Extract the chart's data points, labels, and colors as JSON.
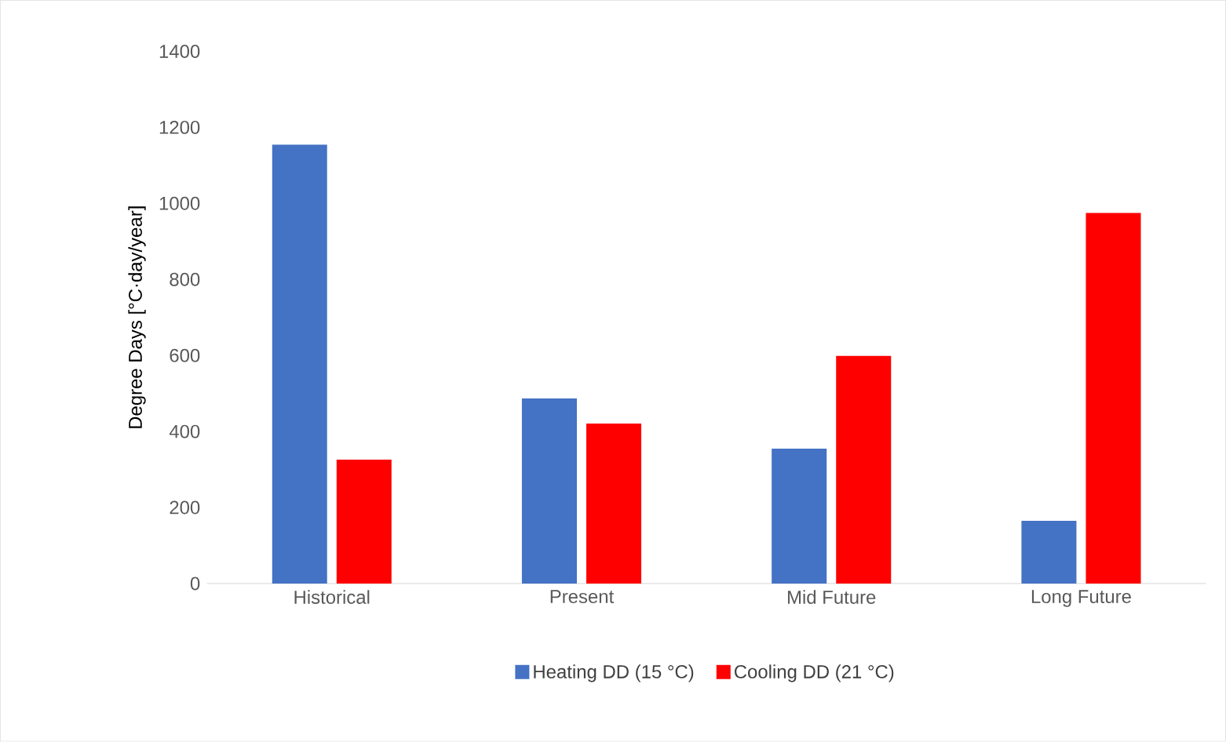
{
  "chart_data": {
    "type": "bar",
    "ylabel": "Degree Days [°C·day/year]",
    "categories": [
      "Historical",
      "Present",
      "Mid Future",
      "Long Future"
    ],
    "series": [
      {
        "name": "Heating DD (15 °C)",
        "color": "#4472c4",
        "values": [
          1155,
          487,
          355,
          165
        ]
      },
      {
        "name": "Cooling DD (21 °C)",
        "color": "#ff0000",
        "values": [
          326,
          421,
          599,
          975
        ]
      }
    ],
    "ylim": [
      0,
      1400
    ],
    "yticks": [
      0,
      200,
      400,
      600,
      800,
      1000,
      1200,
      1400
    ],
    "grid": false,
    "legend": "bottom"
  }
}
